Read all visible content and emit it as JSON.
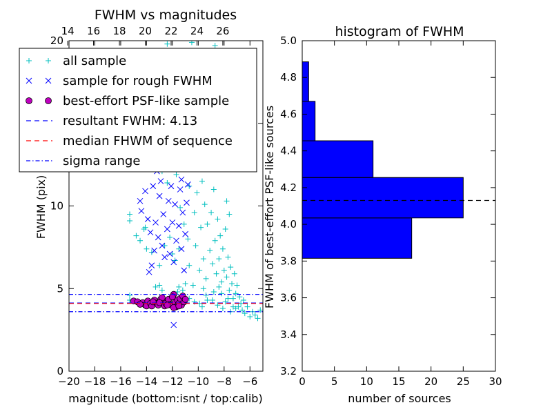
{
  "chart_data": [
    {
      "type": "scatter",
      "title": "FWHM vs magnitudes",
      "xlabel": "magnitude (bottom:isnt / top:calib)",
      "ylabel": "FWHM (pix)",
      "xlim": [
        -20,
        -5
      ],
      "ylim": [
        0,
        20
      ],
      "x_ticks": [
        -20,
        -18,
        -16,
        -14,
        -12,
        -10,
        -8,
        -6
      ],
      "x_tick_labels": [
        "−20",
        "−18",
        "−16",
        "−14",
        "−12",
        "−10",
        "−8",
        "−6"
      ],
      "y_ticks": [
        0,
        5,
        10,
        15,
        20
      ],
      "y_tick_labels": [
        "0",
        "5",
        "10",
        "",
        "20"
      ],
      "top_axis": {
        "ticks": [
          14,
          16,
          18,
          20,
          22,
          24,
          26
        ],
        "tick_labels": [
          "14",
          "16",
          "18",
          "20",
          "22",
          "24",
          "26"
        ],
        "offset": 34.1
      },
      "grid": false,
      "legend_placement": "top-left",
      "legend": [
        {
          "label": "all sample",
          "marker": "plus",
          "color": "#00BFBF"
        },
        {
          "label": "sample for rough FWHM",
          "marker": "x",
          "color": "#0000FF"
        },
        {
          "label": "best-effort PSF-like sample",
          "marker": "circle",
          "color": "#BF00BF"
        },
        {
          "label": "resultant FWHM: 4.13",
          "line": "dashed",
          "color": "#0000FF"
        },
        {
          "label": "median FHWM of sequence",
          "line": "dashed",
          "color": "#FF0000"
        },
        {
          "label": "sigma range",
          "line": "dashdot",
          "color": "#0000FF"
        }
      ],
      "hlines": [
        {
          "name": "resultant FWHM",
          "y": 4.13,
          "color": "#0000FF",
          "style": "dashed"
        },
        {
          "name": "median FHWM of sequence",
          "y": 4.1,
          "color": "#FF0000",
          "style": "dashed"
        },
        {
          "name": "sigma upper",
          "y": 4.65,
          "color": "#0000FF",
          "style": "dashdot"
        },
        {
          "name": "sigma lower",
          "y": 3.6,
          "color": "#0000FF",
          "style": "dashdot"
        }
      ],
      "series": [
        {
          "name": "all sample",
          "marker": "plus",
          "color": "#00BFBF",
          "points": [
            [
              -15.3,
              9.5
            ],
            [
              -15.3,
              9.1
            ],
            [
              -15.3,
              4.6
            ],
            [
              -15.3,
              4.3
            ],
            [
              -14.8,
              8.2
            ],
            [
              -14.5,
              7.9
            ],
            [
              -14.2,
              8.6
            ],
            [
              -14.1,
              8.7
            ],
            [
              -14.0,
              7.4
            ],
            [
              -13.6,
              7.2
            ],
            [
              -13.3,
              5.1
            ],
            [
              -13.0,
              6.4
            ],
            [
              -13.0,
              5.2
            ],
            [
              -12.8,
              12.1
            ],
            [
              -12.8,
              4.9
            ],
            [
              -12.6,
              7.6
            ],
            [
              -12.4,
              11.4
            ],
            [
              -12.3,
              13.5
            ],
            [
              -12.2,
              8.1
            ],
            [
              -12.0,
              7.1
            ],
            [
              -11.8,
              6.7
            ],
            [
              -11.7,
              11.9
            ],
            [
              -11.6,
              4.8
            ],
            [
              -11.5,
              7.4
            ],
            [
              -11.5,
              5.1
            ],
            [
              -11.4,
              9.9
            ],
            [
              -11.2,
              4.9
            ],
            [
              -11.1,
              8.9
            ],
            [
              -11.0,
              5.3
            ],
            [
              -10.9,
              13.6
            ],
            [
              -10.8,
              8.0
            ],
            [
              -10.7,
              11.2
            ],
            [
              -10.7,
              6.4
            ],
            [
              -10.5,
              12.5
            ],
            [
              -10.4,
              5.2
            ],
            [
              -10.3,
              9.6
            ],
            [
              -10.2,
              7.6
            ],
            [
              -10.1,
              10.8
            ],
            [
              -10.0,
              13.4
            ],
            [
              -9.9,
              6.1
            ],
            [
              -9.8,
              8.7
            ],
            [
              -9.7,
              11.5
            ],
            [
              -9.6,
              6.8
            ],
            [
              -9.5,
              10.1
            ],
            [
              -9.4,
              5.6
            ],
            [
              -9.3,
              8.9
            ],
            [
              -9.2,
              12.8
            ],
            [
              -9.1,
              7.3
            ],
            [
              -9.0,
              9.6
            ],
            [
              -8.9,
              6.5
            ],
            [
              -8.8,
              11.0
            ],
            [
              -8.7,
              7.9
            ],
            [
              -8.6,
              5.9
            ],
            [
              -8.5,
              9.2
            ],
            [
              -8.4,
              6.8
            ],
            [
              -8.3,
              8.2
            ],
            [
              -8.2,
              5.4
            ],
            [
              -8.1,
              7.4
            ],
            [
              -8.0,
              6.1
            ],
            [
              -7.9,
              8.6
            ],
            [
              -7.8,
              5.7
            ],
            [
              -7.7,
              6.9
            ],
            [
              -7.6,
              4.9
            ],
            [
              -7.5,
              6.3
            ],
            [
              -7.4,
              5.3
            ],
            [
              -7.3,
              4.4
            ],
            [
              -7.2,
              5.9
            ],
            [
              -7.1,
              4.7
            ],
            [
              -7.0,
              5.2
            ],
            [
              -6.9,
              3.9
            ],
            [
              -6.8,
              4.5
            ],
            [
              -6.7,
              4.1
            ],
            [
              -6.6,
              3.7
            ],
            [
              -6.5,
              4.3
            ],
            [
              -6.4,
              3.5
            ],
            [
              -6.2,
              3.9
            ],
            [
              -6.0,
              3.3
            ],
            [
              -5.8,
              3.6
            ],
            [
              -5.6,
              3.4
            ],
            [
              -5.4,
              3.2
            ],
            [
              -5.2,
              3.7
            ],
            [
              -9.9,
              17.3
            ],
            [
              -9.5,
              15.2
            ],
            [
              -9.0,
              16.1
            ],
            [
              -8.6,
              14.8
            ],
            [
              -10.2,
              14.4
            ],
            [
              -8.3,
              13.1
            ],
            [
              -12.4,
              19.8
            ],
            [
              -10.5,
              19.9
            ],
            [
              -8.7,
              19.7
            ],
            [
              -7.8,
              10.3
            ],
            [
              -7.6,
              9.5
            ],
            [
              -9.6,
              5.0
            ],
            [
              -9.4,
              4.6
            ],
            [
              -8.9,
              4.3
            ],
            [
              -8.5,
              4.0
            ],
            [
              -8.1,
              3.8
            ],
            [
              -7.9,
              4.2
            ],
            [
              -7.5,
              3.6
            ],
            [
              -7.3,
              3.9
            ],
            [
              -10.7,
              4.4
            ],
            [
              -10.3,
              4.2
            ],
            [
              -9.9,
              4.1
            ],
            [
              -9.7,
              3.9
            ],
            [
              -9.3,
              4.3
            ],
            [
              -8.8,
              4.8
            ],
            [
              -8.4,
              5.1
            ],
            [
              -8.2,
              4.7
            ],
            [
              -7.7,
              4.4
            ],
            [
              -7.1,
              3.8
            ]
          ]
        },
        {
          "name": "sample for rough FWHM",
          "marker": "x",
          "color": "#0000FF",
          "points": [
            [
              -14.5,
              10.3
            ],
            [
              -14.4,
              9.7
            ],
            [
              -14.1,
              10.9
            ],
            [
              -13.9,
              9.2
            ],
            [
              -13.7,
              8.4
            ],
            [
              -13.6,
              6.4
            ],
            [
              -13.5,
              11.2
            ],
            [
              -13.4,
              7.3
            ],
            [
              -13.3,
              9.0
            ],
            [
              -13.2,
              12.1
            ],
            [
              -13.1,
              8.1
            ],
            [
              -13.0,
              10.6
            ],
            [
              -12.9,
              11.5
            ],
            [
              -12.8,
              7.6
            ],
            [
              -12.7,
              9.5
            ],
            [
              -12.6,
              6.9
            ],
            [
              -12.5,
              12.4
            ],
            [
              -12.4,
              8.6
            ],
            [
              -12.3,
              10.3
            ],
            [
              -12.2,
              7.1
            ],
            [
              -12.1,
              11.2
            ],
            [
              -12.0,
              9.0
            ],
            [
              -11.9,
              6.6
            ],
            [
              -11.8,
              10.1
            ],
            [
              -11.7,
              7.9
            ],
            [
              -11.6,
              12.3
            ],
            [
              -11.5,
              8.8
            ],
            [
              -11.4,
              11.0
            ],
            [
              -11.3,
              7.4
            ],
            [
              -11.2,
              9.6
            ],
            [
              -11.1,
              6.1
            ],
            [
              -11.0,
              8.3
            ],
            [
              -11.9,
              2.8
            ],
            [
              -12.1,
              14.0
            ],
            [
              -11.6,
              14.5
            ],
            [
              -11.3,
              11.6
            ],
            [
              -11.0,
              12.8
            ],
            [
              -10.9,
              10.2
            ],
            [
              -10.8,
              11.3
            ],
            [
              -13.8,
              6.0
            ]
          ]
        },
        {
          "name": "best-effort PSF-like sample",
          "marker": "circle",
          "color": "#BF00BF",
          "points": [
            [
              -15.0,
              4.25
            ],
            [
              -14.7,
              4.2
            ],
            [
              -14.3,
              4.15
            ],
            [
              -14.1,
              4.0
            ],
            [
              -14.0,
              3.95
            ],
            [
              -13.9,
              4.25
            ],
            [
              -13.7,
              4.1
            ],
            [
              -13.6,
              3.95
            ],
            [
              -13.4,
              4.3
            ],
            [
              -13.2,
              4.1
            ],
            [
              -13.1,
              4.0
            ],
            [
              -12.9,
              4.35
            ],
            [
              -12.7,
              4.2
            ],
            [
              -12.6,
              3.95
            ],
            [
              -12.5,
              4.1
            ],
            [
              -12.3,
              4.35
            ],
            [
              -12.2,
              4.05
            ],
            [
              -12.1,
              4.0
            ],
            [
              -11.9,
              4.65
            ],
            [
              -11.8,
              4.15
            ],
            [
              -11.7,
              3.9
            ],
            [
              -11.6,
              4.3
            ],
            [
              -11.5,
              4.1
            ],
            [
              -11.4,
              4.4
            ],
            [
              -11.3,
              4.0
            ],
            [
              -11.2,
              4.55
            ],
            [
              -11.1,
              4.2
            ],
            [
              -11.0,
              4.35
            ],
            [
              -12.8,
              4.45
            ],
            [
              -13.5,
              4.2
            ],
            [
              -14.5,
              4.05
            ],
            [
              -12.0,
              4.5
            ],
            [
              -11.9,
              3.85
            ],
            [
              -13.0,
              4.15
            ],
            [
              -12.4,
              4.0
            ],
            [
              -11.5,
              3.95
            ]
          ]
        }
      ]
    },
    {
      "type": "histogram",
      "title": "histogram of FWHM",
      "xlabel": "number of sources",
      "ylabel": "FWHM of best-effort PSF-like sources",
      "xlim": [
        0,
        30
      ],
      "ylim": [
        3.2,
        5.0
      ],
      "x_ticks": [
        0,
        5,
        10,
        15,
        20,
        25,
        30
      ],
      "x_tick_labels": [
        "0",
        "5",
        "10",
        "15",
        "20",
        "25",
        "30"
      ],
      "y_ticks": [
        3.2,
        3.4,
        3.6,
        3.8,
        4.0,
        4.2,
        4.4,
        4.6,
        4.8,
        5.0
      ],
      "y_tick_labels": [
        "3.2",
        "3.4",
        "3.6",
        "3.8",
        "4.0",
        "4.2",
        "4.4",
        "4.6",
        "4.8",
        "5.0"
      ],
      "grid": false,
      "orientation": "horizontal",
      "bar_color": "#0000FF",
      "bins": [
        {
          "low": 3.815,
          "high": 4.035,
          "count": 17
        },
        {
          "low": 4.035,
          "high": 4.255,
          "count": 25
        },
        {
          "low": 4.255,
          "high": 4.455,
          "count": 11
        },
        {
          "low": 4.455,
          "high": 4.67,
          "count": 2
        },
        {
          "low": 4.67,
          "high": 4.885,
          "count": 1
        }
      ],
      "hline": {
        "y": 4.13,
        "style": "dashed",
        "color": "#000000"
      }
    }
  ]
}
